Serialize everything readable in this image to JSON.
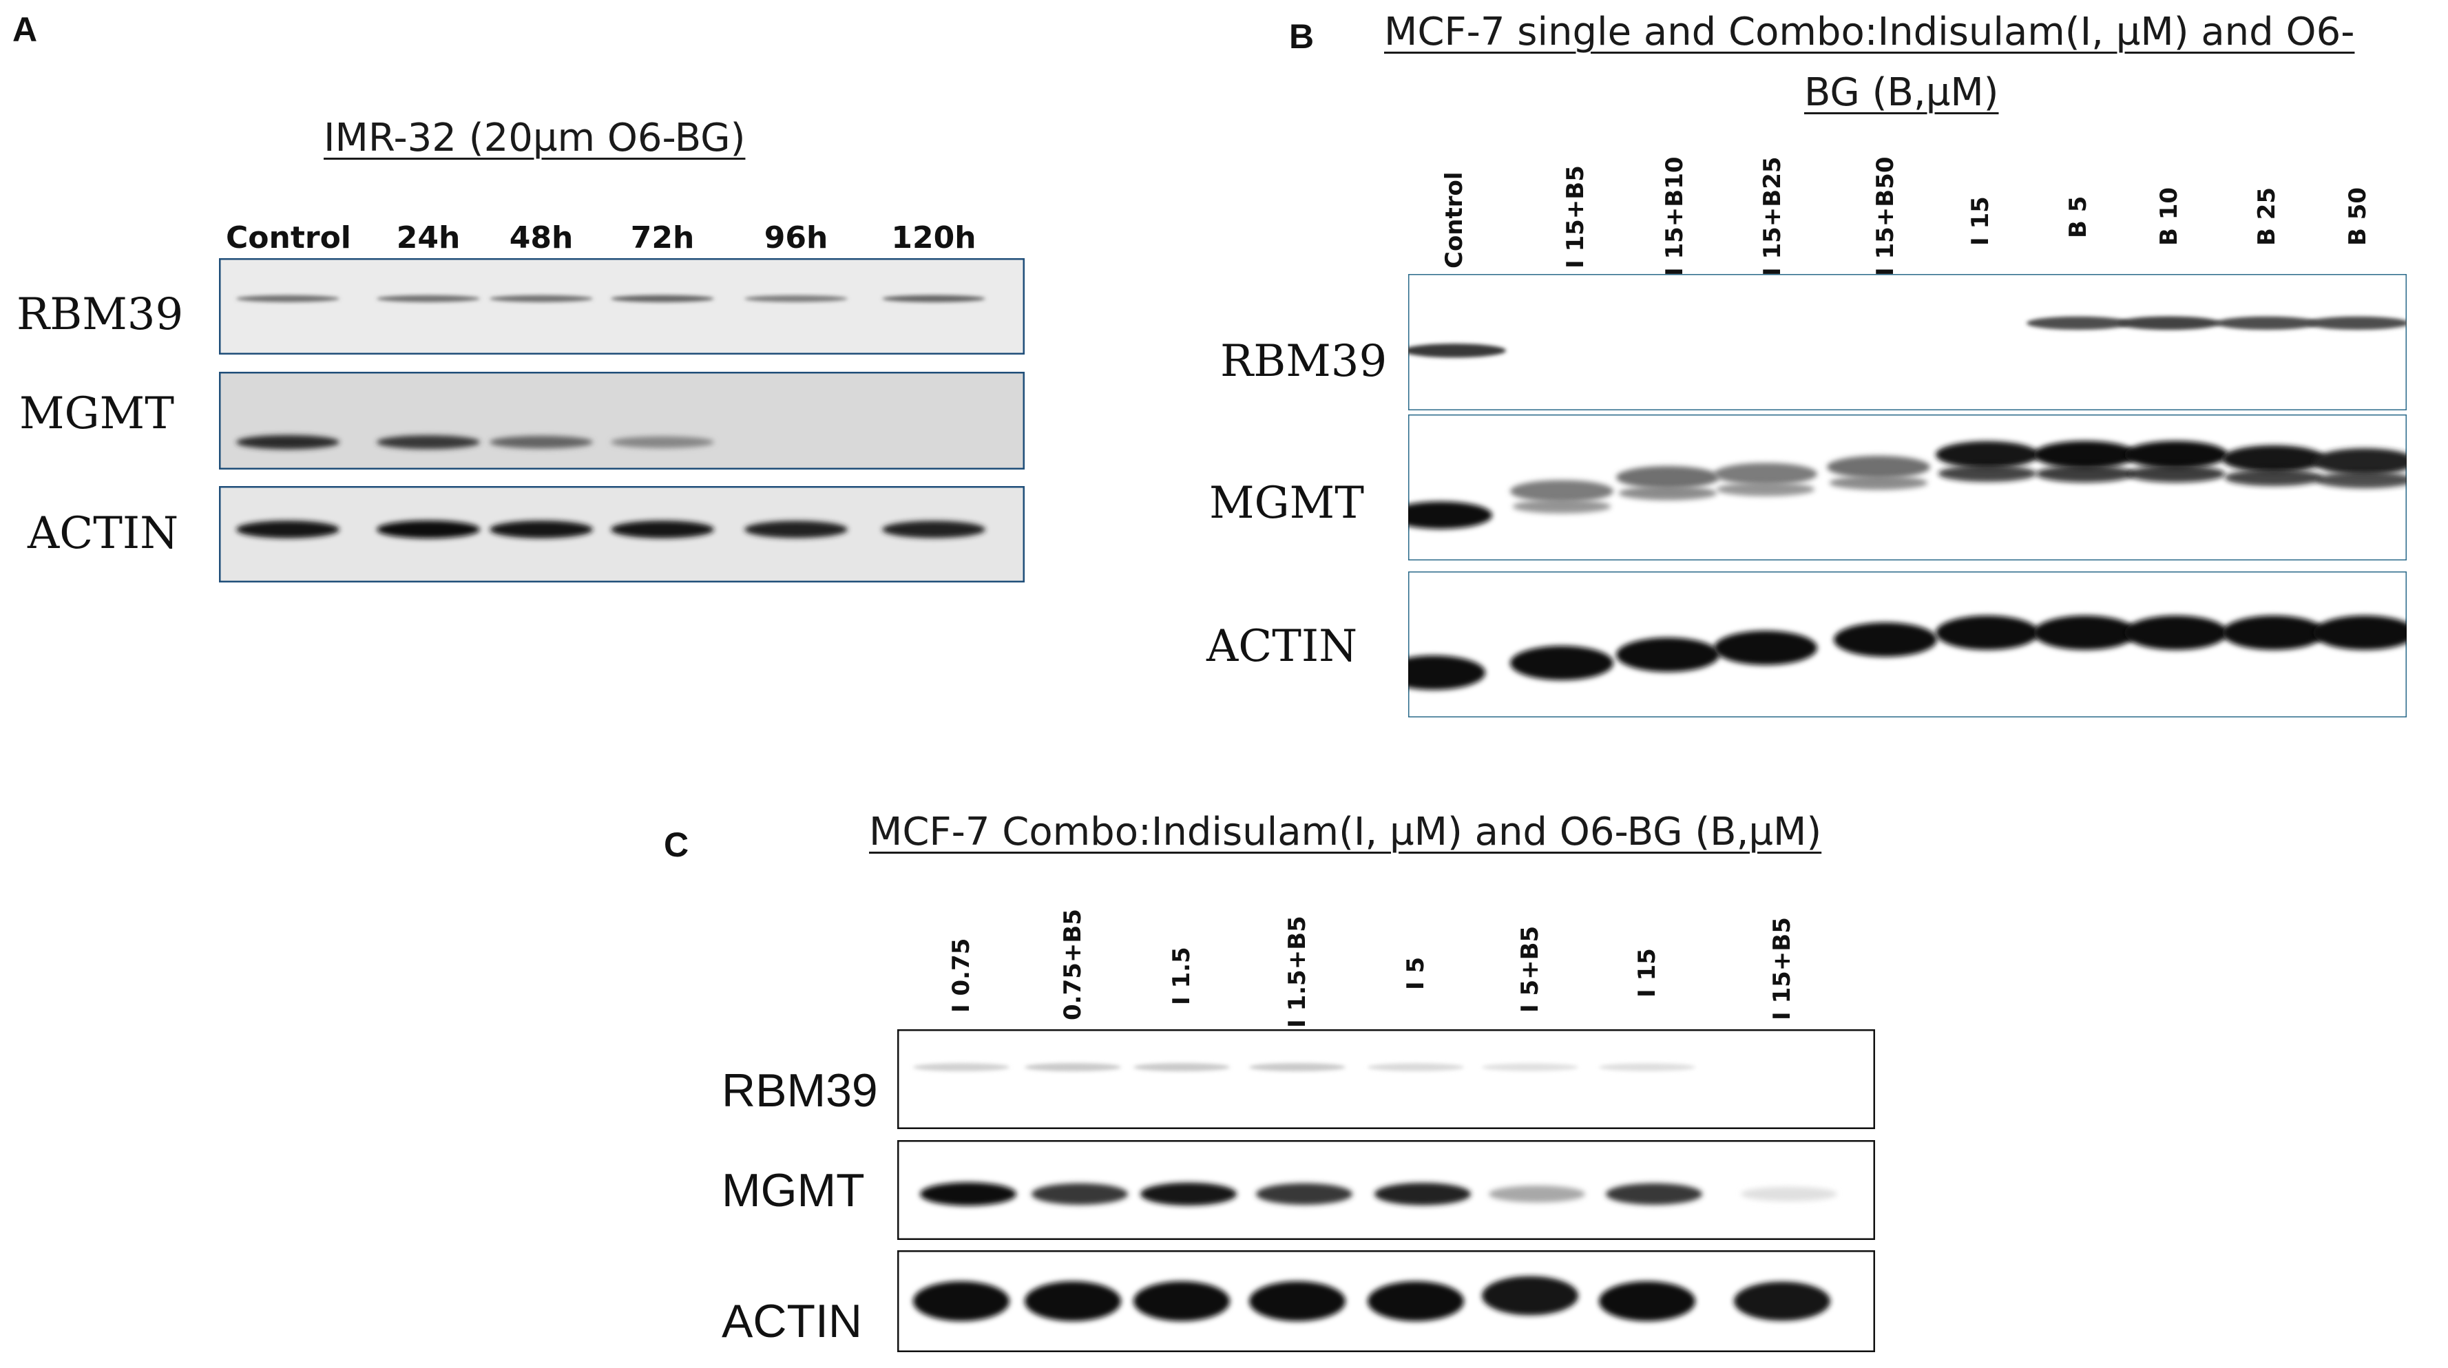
{
  "panels": {
    "A": {
      "letter": "A",
      "title": "IMR-32   (20µm O6-BG)",
      "lanes": [
        "Control",
        "24h",
        "48h",
        "72h",
        "96h",
        "120h"
      ],
      "rows": [
        "RBM39",
        "MGMT",
        "ACTIN"
      ],
      "band_intensity": {
        "RBM39": [
          0.55,
          0.55,
          0.55,
          0.6,
          0.5,
          0.6
        ],
        "MGMT": [
          0.85,
          0.8,
          0.6,
          0.45,
          0.0,
          0.0
        ],
        "ACTIN": [
          0.95,
          1.0,
          0.95,
          0.95,
          0.9,
          0.9
        ]
      },
      "colors": {
        "border": "#1f4e79",
        "membrane": "#e8e8e8"
      }
    },
    "B": {
      "letter": "B",
      "title_line1": "MCF-7  single and Combo:Indisulam(I, µM) and O6-",
      "title_line2": "BG (B,µM)",
      "lanes": [
        "Control",
        "I 15+B5",
        "I 15+B10",
        "I 15+B25",
        "I 15+B50",
        "I 15",
        "B 5",
        "B 10",
        "B 25",
        "B 50"
      ],
      "rows": [
        "RBM39",
        "MGMT",
        "ACTIN"
      ],
      "band_intensity": {
        "RBM39": [
          0.8,
          0.0,
          0.0,
          0.0,
          0.0,
          0.0,
          0.7,
          0.75,
          0.7,
          0.7
        ],
        "MGMT": [
          1.0,
          0.5,
          0.55,
          0.5,
          0.55,
          0.95,
          1.0,
          1.0,
          0.95,
          0.9
        ],
        "ACTIN": [
          1.0,
          1.0,
          1.0,
          1.0,
          1.0,
          1.0,
          1.0,
          1.0,
          1.0,
          1.0
        ]
      },
      "colors": {
        "border": "#2a6a8a",
        "membrane": "#ffffff"
      }
    },
    "C": {
      "letter": "C",
      "title": "MCF-7  Combo:Indisulam(I, µM) and O6-BG (B,µM)",
      "lanes": [
        "I 0.75",
        "0.75+B5",
        "I 1.5",
        "I 1.5+B5",
        "I 5",
        "I 5+B5",
        "I 15",
        "I 15+B5"
      ],
      "rows": [
        "RBM39",
        "MGMT",
        "ACTIN"
      ],
      "band_intensity": {
        "RBM39": [
          0.12,
          0.15,
          0.15,
          0.15,
          0.08,
          0.05,
          0.06,
          0.0
        ],
        "MGMT": [
          1.0,
          0.8,
          0.95,
          0.8,
          0.9,
          0.3,
          0.8,
          0.05
        ],
        "ACTIN": [
          1.0,
          1.0,
          1.0,
          1.0,
          1.0,
          0.95,
          1.0,
          0.95
        ]
      },
      "colors": {
        "border": "#111111",
        "membrane": "#ffffff"
      }
    }
  }
}
